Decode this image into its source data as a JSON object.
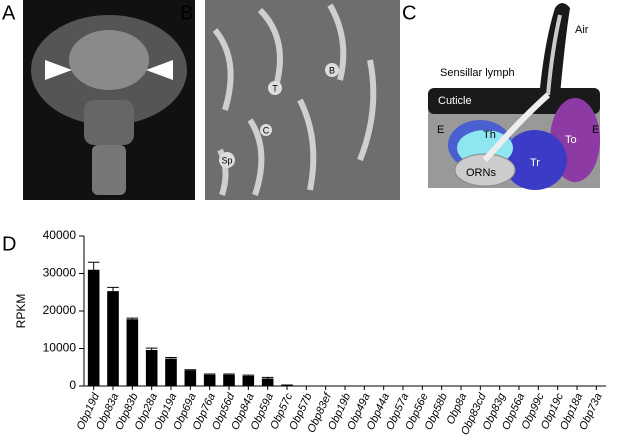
{
  "panels": {
    "a": "A",
    "b": "B",
    "c": "C",
    "d": "D"
  },
  "image_b_labels": {
    "t": "T",
    "b": "B",
    "c": "C",
    "sp": "Sp"
  },
  "diagram": {
    "air": "Air",
    "lymph": "Sensillar lymph",
    "cuticle": "Cuticle",
    "e_left": "E",
    "e_right": "E",
    "th": "Th",
    "to": "To",
    "tr": "Tr",
    "orns": "ORNs"
  },
  "chart_data": {
    "type": "bar",
    "ylabel": "RPKM",
    "categories": [
      "Obp19d",
      "Obp83a",
      "Obp83b",
      "Obp28a",
      "Obp19a",
      "Obp69a",
      "Obp76a",
      "Obp56d",
      "Obp84a",
      "Obp59a",
      "Obp57c",
      "Obp57b",
      "Obp83ef",
      "Obp19b",
      "Obp49a",
      "Obp44a",
      "Obp57a",
      "Obp56e",
      "Obp58b",
      "Obp8a",
      "Obp83cd",
      "Obp83g",
      "Obp56a",
      "Obp99c",
      "Obp19c",
      "Obp18a",
      "Obp73a"
    ],
    "values": [
      31000,
      25300,
      17800,
      9600,
      7300,
      4200,
      3000,
      3000,
      2700,
      2000,
      400,
      0,
      0,
      0,
      0,
      0,
      0,
      0,
      0,
      0,
      0,
      0,
      0,
      0,
      0,
      0,
      0
    ],
    "errors": [
      2000,
      1000,
      300,
      500,
      300,
      150,
      200,
      200,
      200,
      300,
      0,
      0,
      0,
      0,
      0,
      0,
      0,
      0,
      0,
      0,
      0,
      0,
      0,
      0,
      0,
      0,
      0
    ],
    "color": "#000000",
    "ylim": [
      0,
      40000
    ],
    "yticks": [
      0,
      10000,
      20000,
      30000,
      40000
    ]
  }
}
